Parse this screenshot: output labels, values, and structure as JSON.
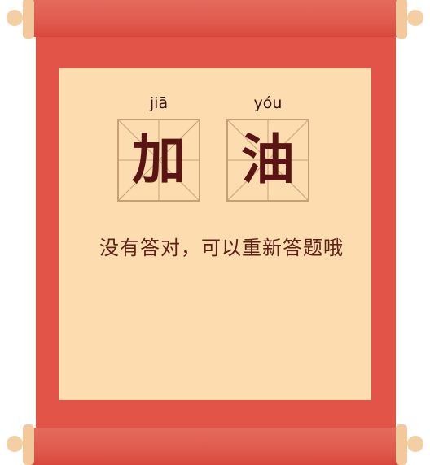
{
  "pinyin": {
    "first": "jiā",
    "second": "yóu"
  },
  "characters": {
    "first": "加",
    "second": "油"
  },
  "message": {
    "text": "没有答对，可以重新答题哦"
  },
  "colors": {
    "scroll_red": "#e25448",
    "panel_beige": "#fddcb0",
    "rod_cap": "#f2c89c",
    "grid_line": "#c7a07a",
    "character": "#5a1414"
  }
}
